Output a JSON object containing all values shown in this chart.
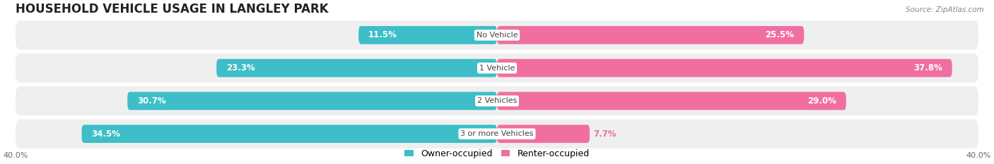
{
  "title": "HOUSEHOLD VEHICLE USAGE IN LANGLEY PARK",
  "source": "Source: ZipAtlas.com",
  "categories": [
    "No Vehicle",
    "1 Vehicle",
    "2 Vehicles",
    "3 or more Vehicles"
  ],
  "owner_values": [
    11.5,
    23.3,
    30.7,
    34.5
  ],
  "renter_values": [
    25.5,
    37.8,
    29.0,
    7.7
  ],
  "owner_color": "#3dbec8",
  "renter_color": "#f06fa0",
  "renter_color_light": "#f9c8d8",
  "owner_label": "Owner-occupied",
  "renter_label": "Renter-occupied",
  "xmax": 40.0,
  "background_color": "#ffffff",
  "row_bg_color": "#efefef",
  "title_fontsize": 12,
  "label_fontsize": 8.5,
  "cat_fontsize": 8,
  "axis_label_fontsize": 8,
  "legend_fontsize": 9
}
